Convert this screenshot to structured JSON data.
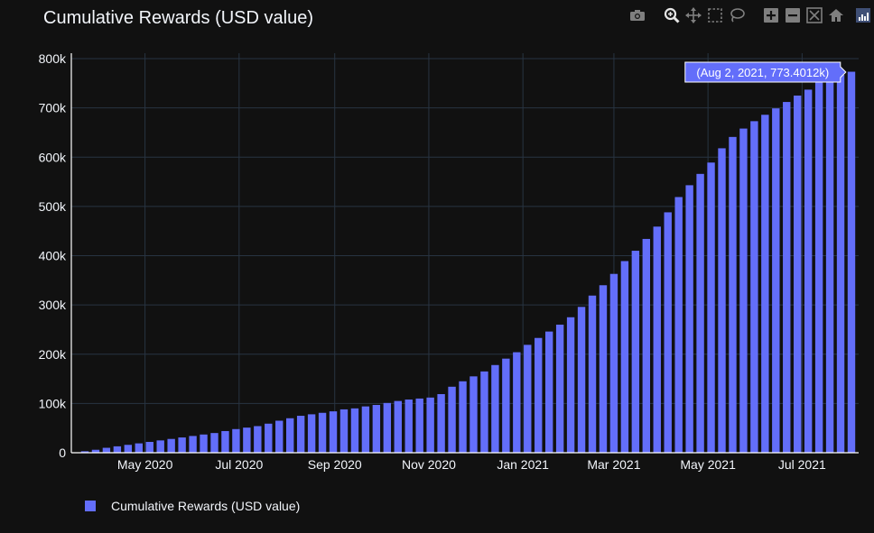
{
  "chart_data": {
    "type": "bar",
    "title": "Cumulative Rewards (USD value)",
    "xlabel": "",
    "ylabel": "",
    "x_tick_labels": [
      "May 2020",
      "Jul 2020",
      "Sep 2020",
      "Nov 2020",
      "Jan 2021",
      "Mar 2021",
      "May 2021",
      "Jul 2021"
    ],
    "y_tick_labels": [
      "0",
      "100k",
      "200k",
      "300k",
      "400k",
      "500k",
      "600k",
      "700k",
      "800k"
    ],
    "ylim": [
      0,
      800000
    ],
    "grid": true,
    "legend_position": "bottom-left",
    "series": [
      {
        "name": "Cumulative Rewards (USD value)",
        "color": "#636efa",
        "x": [
          "2020-03-23",
          "2020-03-30",
          "2020-04-06",
          "2020-04-13",
          "2020-04-20",
          "2020-04-27",
          "2020-05-04",
          "2020-05-11",
          "2020-05-18",
          "2020-05-25",
          "2020-06-01",
          "2020-06-08",
          "2020-06-15",
          "2020-06-22",
          "2020-06-29",
          "2020-07-06",
          "2020-07-13",
          "2020-07-20",
          "2020-07-27",
          "2020-08-03",
          "2020-08-10",
          "2020-08-17",
          "2020-08-24",
          "2020-08-31",
          "2020-09-07",
          "2020-09-14",
          "2020-09-21",
          "2020-09-28",
          "2020-10-05",
          "2020-10-12",
          "2020-10-19",
          "2020-10-26",
          "2020-11-02",
          "2020-11-09",
          "2020-11-16",
          "2020-11-23",
          "2020-11-30",
          "2020-12-07",
          "2020-12-14",
          "2020-12-21",
          "2020-12-28",
          "2021-01-04",
          "2021-01-11",
          "2021-01-18",
          "2021-01-25",
          "2021-02-01",
          "2021-02-08",
          "2021-02-15",
          "2021-02-22",
          "2021-03-01",
          "2021-03-08",
          "2021-03-15",
          "2021-03-22",
          "2021-03-29",
          "2021-04-05",
          "2021-04-12",
          "2021-04-19",
          "2021-04-26",
          "2021-05-03",
          "2021-05-10",
          "2021-05-17",
          "2021-05-24",
          "2021-05-31",
          "2021-06-07",
          "2021-06-14",
          "2021-06-21",
          "2021-06-28",
          "2021-07-05",
          "2021-07-12",
          "2021-07-19",
          "2021-07-26",
          "2021-08-02"
        ],
        "values": [
          3000,
          6000,
          10000,
          13000,
          16000,
          19000,
          22000,
          25000,
          28000,
          31000,
          34000,
          37000,
          40000,
          44000,
          48000,
          51000,
          54000,
          59000,
          65000,
          70000,
          75000,
          78000,
          81000,
          84000,
          88000,
          90000,
          94000,
          97000,
          101000,
          105000,
          108000,
          110000,
          112000,
          119000,
          134000,
          145000,
          155000,
          165000,
          178000,
          191000,
          204000,
          219000,
          233000,
          246000,
          260000,
          275000,
          296000,
          319000,
          340000,
          363000,
          389000,
          410000,
          434000,
          459000,
          488000,
          519000,
          543000,
          566000,
          589000,
          618000,
          641000,
          658000,
          673000,
          686000,
          699000,
          712000,
          725000,
          737000,
          752000,
          762000,
          767000,
          773401.2
        ],
        "hover_label": "(Aug 2, 2021, 773.4012k)"
      }
    ]
  },
  "modebar": {
    "icons": [
      "camera-icon",
      "zoom-icon",
      "pan-icon",
      "box-select-icon",
      "lasso-icon",
      "zoom-in-icon",
      "zoom-out-icon",
      "autoscale-icon",
      "reset-axes-icon",
      "plotly-logo-icon"
    ]
  }
}
